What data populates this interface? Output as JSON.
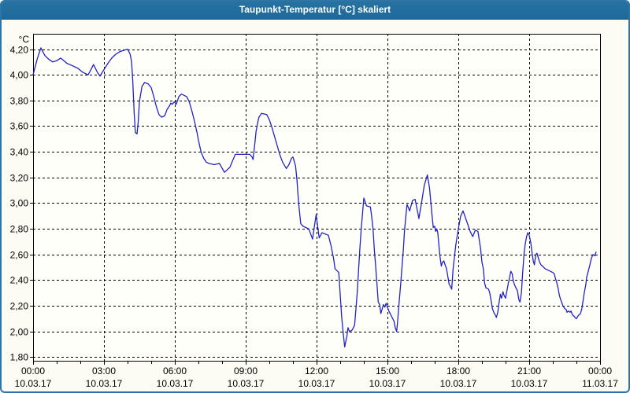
{
  "window": {
    "title": "Taupunkt-Temperatur [°C] skaliert"
  },
  "colors": {
    "titlebar": "#1d699c",
    "title_text": "#ffffff",
    "window_border": "#2e74a6",
    "window_bg": "#fcfcf4",
    "plot_bg": "#fffffa",
    "grid": "#000000",
    "axis": "#000000",
    "line": "#2222c4",
    "text": "#000000"
  },
  "chart_data": {
    "type": "line",
    "title": "Taupunkt-Temperatur [°C] skaliert",
    "grid": "dashed",
    "legend": "none",
    "y_axis": {
      "unit": "°C",
      "range": [
        1.77,
        4.32
      ],
      "tick_step": 0.2,
      "ticks": [
        {
          "value": 4.2,
          "label": "4,20"
        },
        {
          "value": 4.0,
          "label": "4,00"
        },
        {
          "value": 3.8,
          "label": "3,80"
        },
        {
          "value": 3.6,
          "label": "3,60"
        },
        {
          "value": 3.4,
          "label": "3,40"
        },
        {
          "value": 3.2,
          "label": "3,20"
        },
        {
          "value": 3.0,
          "label": "3,00"
        },
        {
          "value": 2.8,
          "label": "2,80"
        },
        {
          "value": 2.6,
          "label": "2,60"
        },
        {
          "value": 2.4,
          "label": "2,40"
        },
        {
          "value": 2.2,
          "label": "2,20"
        },
        {
          "value": 2.0,
          "label": "2,00"
        },
        {
          "value": 1.8,
          "label": "1,80"
        }
      ]
    },
    "x_axis": {
      "range_hours": [
        0,
        24
      ],
      "minor_tick_hours": 1,
      "ticks": [
        {
          "hour": 0,
          "time": "00:00",
          "date": "10.03.17"
        },
        {
          "hour": 3,
          "time": "03:00",
          "date": "10.03.17"
        },
        {
          "hour": 6,
          "time": "06:00",
          "date": "10.03.17"
        },
        {
          "hour": 9,
          "time": "09:00",
          "date": "10.03.17"
        },
        {
          "hour": 12,
          "time": "12:00",
          "date": "10.03.17"
        },
        {
          "hour": 15,
          "time": "15:00",
          "date": "10.03.17"
        },
        {
          "hour": 18,
          "time": "18:00",
          "date": "10.03.17"
        },
        {
          "hour": 21,
          "time": "21:00",
          "date": "10.03.17"
        },
        {
          "hour": 24,
          "time": "00:00",
          "date": "11.03.17"
        }
      ]
    },
    "series": [
      {
        "name": "Taupunkt-Temperatur",
        "color": "#2222c4",
        "points": [
          [
            0.0,
            4.0
          ],
          [
            0.17,
            4.12
          ],
          [
            0.33,
            4.21
          ],
          [
            0.5,
            4.15
          ],
          [
            0.67,
            4.12
          ],
          [
            0.83,
            4.1
          ],
          [
            1.0,
            4.11
          ],
          [
            1.17,
            4.13
          ],
          [
            1.43,
            4.09
          ],
          [
            1.67,
            4.07
          ],
          [
            1.9,
            4.05
          ],
          [
            2.1,
            4.02
          ],
          [
            2.33,
            4.0
          ],
          [
            2.45,
            4.04
          ],
          [
            2.56,
            4.08
          ],
          [
            2.72,
            4.02
          ],
          [
            2.83,
            3.99
          ],
          [
            3.0,
            4.04
          ],
          [
            3.17,
            4.09
          ],
          [
            3.33,
            4.13
          ],
          [
            3.5,
            4.16
          ],
          [
            3.67,
            4.18
          ],
          [
            3.83,
            4.19
          ],
          [
            4.0,
            4.2
          ],
          [
            4.11,
            4.16
          ],
          [
            4.17,
            4.1
          ],
          [
            4.22,
            3.95
          ],
          [
            4.28,
            3.7
          ],
          [
            4.33,
            3.55
          ],
          [
            4.4,
            3.54
          ],
          [
            4.45,
            3.63
          ],
          [
            4.5,
            3.79
          ],
          [
            4.61,
            3.91
          ],
          [
            4.72,
            3.94
          ],
          [
            4.87,
            3.93
          ],
          [
            5.0,
            3.9
          ],
          [
            5.11,
            3.83
          ],
          [
            5.22,
            3.75
          ],
          [
            5.33,
            3.69
          ],
          [
            5.44,
            3.67
          ],
          [
            5.57,
            3.68
          ],
          [
            5.67,
            3.73
          ],
          [
            5.78,
            3.76
          ],
          [
            5.83,
            3.78
          ],
          [
            5.89,
            3.77
          ],
          [
            5.98,
            3.79
          ],
          [
            6.06,
            3.77
          ],
          [
            6.17,
            3.83
          ],
          [
            6.28,
            3.85
          ],
          [
            6.39,
            3.84
          ],
          [
            6.5,
            3.83
          ],
          [
            6.61,
            3.79
          ],
          [
            6.72,
            3.72
          ],
          [
            6.83,
            3.64
          ],
          [
            6.94,
            3.55
          ],
          [
            7.0,
            3.49
          ],
          [
            7.11,
            3.4
          ],
          [
            7.22,
            3.35
          ],
          [
            7.33,
            3.32
          ],
          [
            7.44,
            3.31
          ],
          [
            7.67,
            3.3
          ],
          [
            7.89,
            3.31
          ],
          [
            8.1,
            3.24
          ],
          [
            8.33,
            3.28
          ],
          [
            8.56,
            3.38
          ],
          [
            9.0,
            3.38
          ],
          [
            9.17,
            3.38
          ],
          [
            9.27,
            3.36
          ],
          [
            9.31,
            3.34
          ],
          [
            9.39,
            3.47
          ],
          [
            9.44,
            3.56
          ],
          [
            9.5,
            3.62
          ],
          [
            9.56,
            3.67
          ],
          [
            9.67,
            3.7
          ],
          [
            9.89,
            3.69
          ],
          [
            10.0,
            3.65
          ],
          [
            10.11,
            3.59
          ],
          [
            10.22,
            3.52
          ],
          [
            10.33,
            3.45
          ],
          [
            10.44,
            3.38
          ],
          [
            10.56,
            3.32
          ],
          [
            10.72,
            3.27
          ],
          [
            10.83,
            3.3
          ],
          [
            10.94,
            3.35
          ],
          [
            11.0,
            3.36
          ],
          [
            11.11,
            3.29
          ],
          [
            11.17,
            3.18
          ],
          [
            11.24,
            3.0
          ],
          [
            11.33,
            2.84
          ],
          [
            11.43,
            2.82
          ],
          [
            11.67,
            2.8
          ],
          [
            11.83,
            2.72
          ],
          [
            11.98,
            2.91
          ],
          [
            12.11,
            2.73
          ],
          [
            12.23,
            2.77
          ],
          [
            12.5,
            2.75
          ],
          [
            12.61,
            2.67
          ],
          [
            12.72,
            2.57
          ],
          [
            12.78,
            2.49
          ],
          [
            12.94,
            2.46
          ],
          [
            13.06,
            2.12
          ],
          [
            13.11,
            2.02
          ],
          [
            13.19,
            1.88
          ],
          [
            13.28,
            1.96
          ],
          [
            13.33,
            2.03
          ],
          [
            13.39,
            2.0
          ],
          [
            13.5,
            2.01
          ],
          [
            13.61,
            2.05
          ],
          [
            13.72,
            2.3
          ],
          [
            13.83,
            2.64
          ],
          [
            13.89,
            2.8
          ],
          [
            14.0,
            3.04
          ],
          [
            14.06,
            3.01
          ],
          [
            14.11,
            2.98
          ],
          [
            14.28,
            2.97
          ],
          [
            14.33,
            2.9
          ],
          [
            14.39,
            2.8
          ],
          [
            14.44,
            2.65
          ],
          [
            14.5,
            2.51
          ],
          [
            14.56,
            2.36
          ],
          [
            14.61,
            2.23
          ],
          [
            14.67,
            2.21
          ],
          [
            14.72,
            2.14
          ],
          [
            14.83,
            2.21
          ],
          [
            14.89,
            2.19
          ],
          [
            14.94,
            2.22
          ],
          [
            15.06,
            2.16
          ],
          [
            15.17,
            2.12
          ],
          [
            15.28,
            2.08
          ],
          [
            15.33,
            2.03
          ],
          [
            15.39,
            2.0
          ],
          [
            15.44,
            2.1
          ],
          [
            15.5,
            2.24
          ],
          [
            15.56,
            2.37
          ],
          [
            15.61,
            2.49
          ],
          [
            15.67,
            2.63
          ],
          [
            15.72,
            2.78
          ],
          [
            15.78,
            2.9
          ],
          [
            15.83,
            2.99
          ],
          [
            15.94,
            2.94
          ],
          [
            16.06,
            3.02
          ],
          [
            16.17,
            3.03
          ],
          [
            16.28,
            2.93
          ],
          [
            16.33,
            2.88
          ],
          [
            16.44,
            3.0
          ],
          [
            16.56,
            3.14
          ],
          [
            16.69,
            3.22
          ],
          [
            16.78,
            3.12
          ],
          [
            16.83,
            3.02
          ],
          [
            16.89,
            2.9
          ],
          [
            16.94,
            2.81
          ],
          [
            17.0,
            2.82
          ],
          [
            17.04,
            2.78
          ],
          [
            17.09,
            2.8
          ],
          [
            17.13,
            2.77
          ],
          [
            17.22,
            2.59
          ],
          [
            17.28,
            2.51
          ],
          [
            17.33,
            2.54
          ],
          [
            17.39,
            2.55
          ],
          [
            17.44,
            2.52
          ],
          [
            17.5,
            2.49
          ],
          [
            17.61,
            2.37
          ],
          [
            17.67,
            2.35
          ],
          [
            17.72,
            2.33
          ],
          [
            17.78,
            2.49
          ],
          [
            17.89,
            2.67
          ],
          [
            18.0,
            2.8
          ],
          [
            18.1,
            2.9
          ],
          [
            18.2,
            2.94
          ],
          [
            18.39,
            2.84
          ],
          [
            18.5,
            2.78
          ],
          [
            18.61,
            2.74
          ],
          [
            18.72,
            2.79
          ],
          [
            18.83,
            2.78
          ],
          [
            18.94,
            2.65
          ],
          [
            19.0,
            2.54
          ],
          [
            19.06,
            2.49
          ],
          [
            19.11,
            2.38
          ],
          [
            19.17,
            2.34
          ],
          [
            19.28,
            2.33
          ],
          [
            19.33,
            2.3
          ],
          [
            19.39,
            2.24
          ],
          [
            19.44,
            2.18
          ],
          [
            19.5,
            2.15
          ],
          [
            19.56,
            2.13
          ],
          [
            19.61,
            2.11
          ],
          [
            19.67,
            2.15
          ],
          [
            19.72,
            2.22
          ],
          [
            19.78,
            2.29
          ],
          [
            19.83,
            2.26
          ],
          [
            19.89,
            2.31
          ],
          [
            19.94,
            2.28
          ],
          [
            20.0,
            2.26
          ],
          [
            20.11,
            2.37
          ],
          [
            20.17,
            2.42
          ],
          [
            20.22,
            2.47
          ],
          [
            20.28,
            2.45
          ],
          [
            20.33,
            2.39
          ],
          [
            20.39,
            2.36
          ],
          [
            20.44,
            2.34
          ],
          [
            20.5,
            2.32
          ],
          [
            20.56,
            2.25
          ],
          [
            20.61,
            2.23
          ],
          [
            20.67,
            2.3
          ],
          [
            20.72,
            2.45
          ],
          [
            20.78,
            2.6
          ],
          [
            20.83,
            2.68
          ],
          [
            20.89,
            2.74
          ],
          [
            20.94,
            2.77
          ],
          [
            21.0,
            2.75
          ],
          [
            21.06,
            2.7
          ],
          [
            21.11,
            2.63
          ],
          [
            21.17,
            2.55
          ],
          [
            21.22,
            2.52
          ],
          [
            21.28,
            2.6
          ],
          [
            21.33,
            2.61
          ],
          [
            21.39,
            2.57
          ],
          [
            21.44,
            2.54
          ],
          [
            21.5,
            2.52
          ],
          [
            21.56,
            2.51
          ],
          [
            21.67,
            2.49
          ],
          [
            21.78,
            2.48
          ],
          [
            21.89,
            2.47
          ],
          [
            22.0,
            2.46
          ],
          [
            22.06,
            2.45
          ],
          [
            22.1,
            2.42
          ],
          [
            22.17,
            2.38
          ],
          [
            22.22,
            2.34
          ],
          [
            22.28,
            2.28
          ],
          [
            22.33,
            2.25
          ],
          [
            22.39,
            2.22
          ],
          [
            22.43,
            2.2
          ],
          [
            22.5,
            2.18
          ],
          [
            22.57,
            2.17
          ],
          [
            22.6,
            2.15
          ],
          [
            22.67,
            2.16
          ],
          [
            22.73,
            2.15
          ],
          [
            22.77,
            2.16
          ],
          [
            22.83,
            2.13
          ],
          [
            22.9,
            2.12
          ],
          [
            22.94,
            2.11
          ],
          [
            23.0,
            2.1
          ],
          [
            23.06,
            2.12
          ],
          [
            23.11,
            2.13
          ],
          [
            23.17,
            2.14
          ],
          [
            23.23,
            2.18
          ],
          [
            23.28,
            2.24
          ],
          [
            23.33,
            2.3
          ],
          [
            23.4,
            2.37
          ],
          [
            23.43,
            2.42
          ],
          [
            23.5,
            2.47
          ],
          [
            23.57,
            2.52
          ],
          [
            23.63,
            2.57
          ],
          [
            23.7,
            2.6
          ],
          [
            23.78,
            2.59
          ],
          [
            23.83,
            2.62
          ]
        ]
      }
    ]
  }
}
